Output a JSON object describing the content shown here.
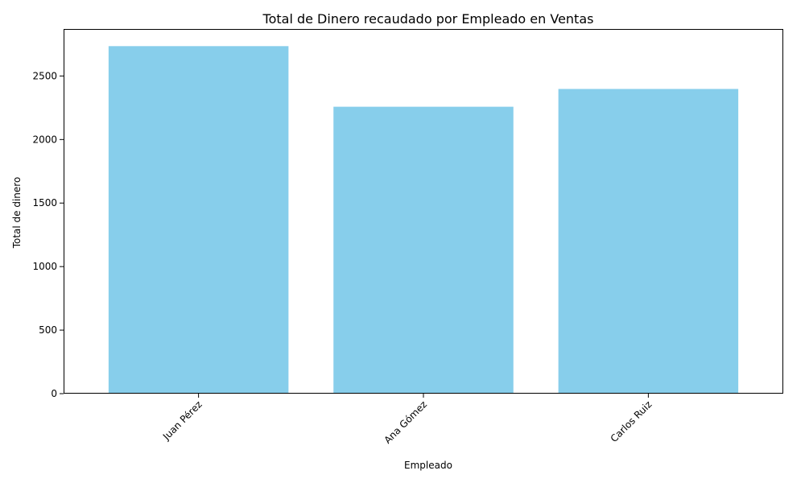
{
  "chart_data": {
    "type": "bar",
    "title": "Total de Dinero recaudado por Empleado en Ventas",
    "xlabel": "Empleado",
    "ylabel": "Total de dinero",
    "categories": [
      "Juan Pérez",
      "Ana Gómez",
      "Carlos Ruiz"
    ],
    "values": [
      2735,
      2258,
      2398
    ],
    "ylim": [
      0,
      2870
    ],
    "yticks": [
      0,
      500,
      1000,
      1500,
      2000,
      2500
    ],
    "bar_color": "#87ceeb",
    "grid": false,
    "legend": "none",
    "xtick_rotation": 45
  }
}
